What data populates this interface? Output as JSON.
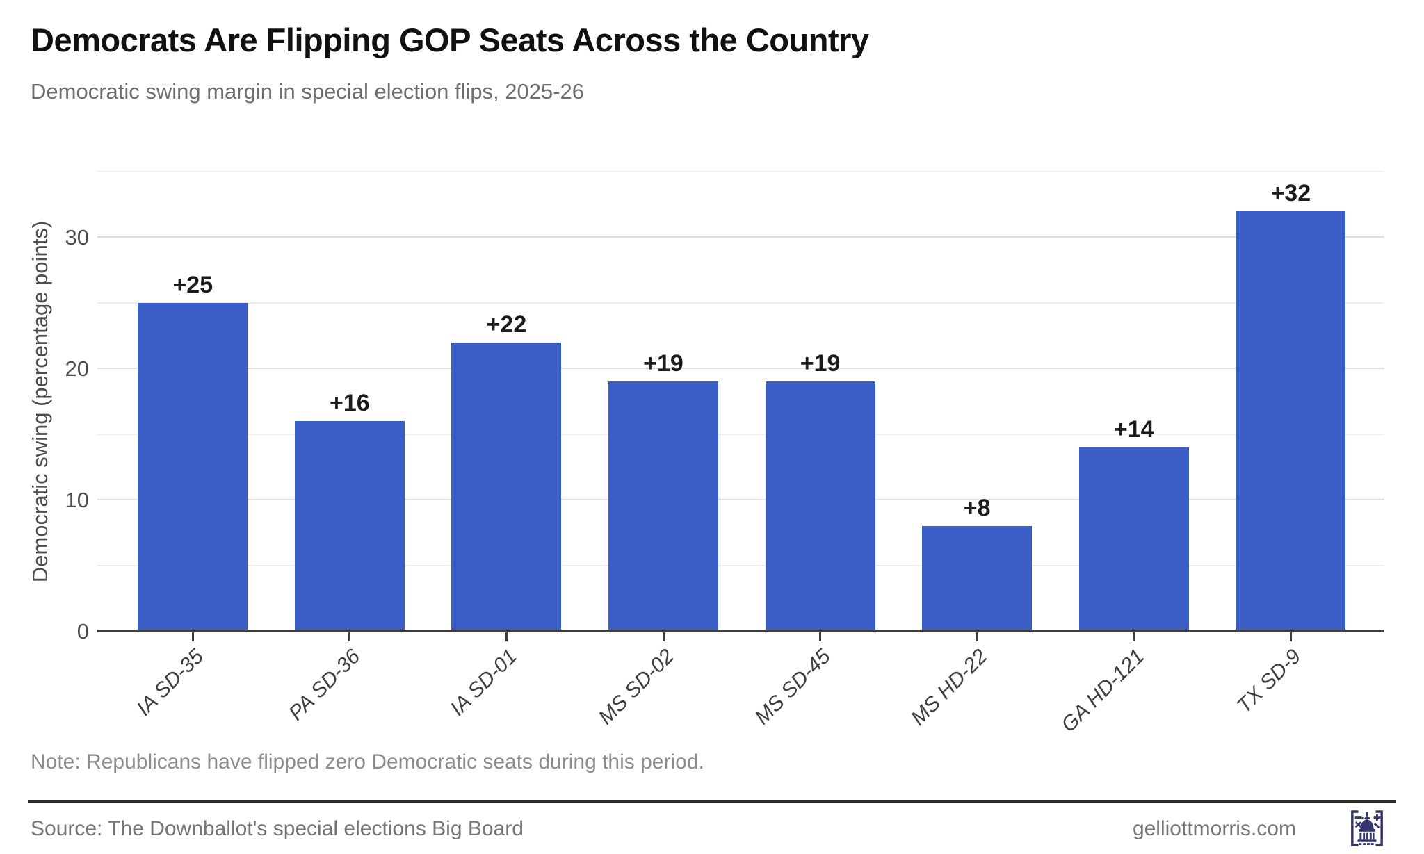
{
  "title": "Democrats Are Flipping GOP Seats Across the Country",
  "subtitle": "Democratic swing margin in special election flips, 2025-26",
  "note": "Note: Republicans have flipped zero Democratic seats during this period.",
  "footer": {
    "source": "Source: The Downballot's special elections Big Board",
    "site": "gelliottmorris.com",
    "logo_icon": "capitol-icon"
  },
  "colors": {
    "bar": "#3b5dc6",
    "axis": "#3d3d3d",
    "grid_major": "#dedede",
    "grid_minor": "#ececec",
    "title": "#111111",
    "subtitle": "#6f6f6f",
    "tick_label": "#4d4d4d",
    "value_label": "#1c1c1c",
    "note": "#8c8c8c",
    "footer_text": "#757575",
    "logo": "#35356e"
  },
  "chart_data": {
    "type": "bar",
    "categories": [
      "IA SD-35",
      "PA SD-36",
      "IA SD-01",
      "MS SD-02",
      "MS SD-45",
      "MS HD-22",
      "GA HD-121",
      "TX SD-9"
    ],
    "values": [
      25,
      16,
      22,
      19,
      19,
      8,
      14,
      32
    ],
    "value_labels": [
      "+25",
      "+16",
      "+22",
      "+19",
      "+19",
      "+8",
      "+14",
      "+32"
    ],
    "title": "Democrats Are Flipping GOP Seats Across the Country",
    "xlabel": "",
    "ylabel": "Democratic swing (percentage points)",
    "ylim": [
      0,
      35
    ],
    "yticks": [
      0,
      10,
      20,
      30
    ],
    "grid": "horizontal, every 5 points, major every 10",
    "legend": "none",
    "bar_orientation": "vertical",
    "x_tick_label_angle_deg": 45,
    "x_tick_label_style": "italic"
  }
}
